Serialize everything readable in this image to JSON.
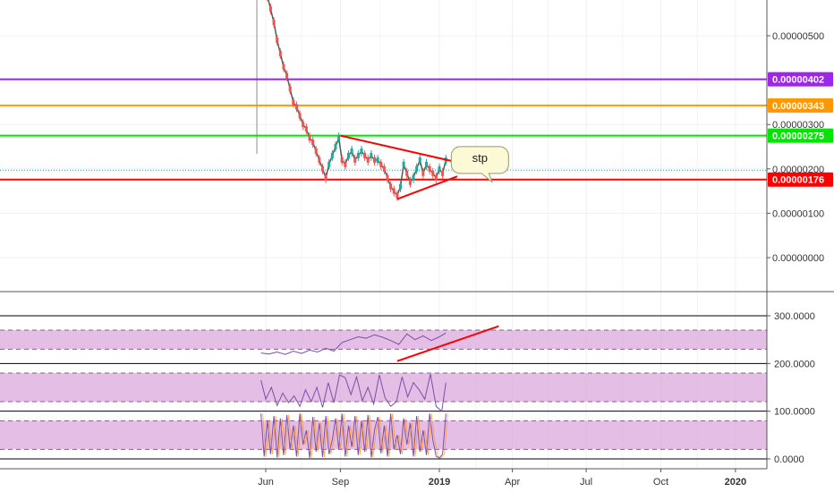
{
  "chart_data": [
    {
      "type": "line",
      "panel": "price",
      "y_ticks": [
        "0.00000500",
        "0.00000300",
        "0.00000200",
        "0.00000100",
        "0.00000000"
      ],
      "ylim": [
        -6e-07,
        6.5e-06
      ],
      "x_ticks": [
        "Jun",
        "Sep",
        "2019",
        "Apr",
        "Jul",
        "Oct",
        "2020"
      ],
      "last_price": 1.97e-06,
      "price_series": {
        "x": [
          "2018-05-26",
          "2018-05-30",
          "2018-06-03",
          "2018-06-07",
          "2018-06-11",
          "2018-06-15",
          "2018-06-19",
          "2018-06-23",
          "2018-06-27",
          "2018-07-01",
          "2018-07-05",
          "2018-07-09",
          "2018-07-13",
          "2018-07-17",
          "2018-07-21",
          "2018-07-25",
          "2018-07-29",
          "2018-08-02",
          "2018-08-06",
          "2018-08-10",
          "2018-08-14",
          "2018-08-18",
          "2018-08-22",
          "2018-08-26",
          "2018-08-30",
          "2018-09-03",
          "2018-09-07",
          "2018-09-11",
          "2018-09-15",
          "2018-09-19",
          "2018-09-23",
          "2018-09-27",
          "2018-10-01",
          "2018-10-05",
          "2018-10-09",
          "2018-10-13",
          "2018-10-17",
          "2018-10-21",
          "2018-10-25",
          "2018-10-29",
          "2018-11-02",
          "2018-11-06",
          "2018-11-10",
          "2018-11-14",
          "2018-11-18",
          "2018-11-22",
          "2018-11-26",
          "2018-11-30",
          "2018-12-04",
          "2018-12-08",
          "2018-12-12",
          "2018-12-16",
          "2018-12-20",
          "2018-12-24",
          "2018-12-28",
          "2019-01-01",
          "2019-01-05",
          "2019-01-09"
        ],
        "y": [
          6.6e-06,
          6.3e-06,
          5.9e-06,
          5.6e-06,
          5.3e-06,
          4.9e-06,
          4.6e-06,
          4.3e-06,
          4.1e-06,
          3.8e-06,
          3.5e-06,
          3.4e-06,
          3.2e-06,
          3e-06,
          2.9e-06,
          2.7e-06,
          2.6e-06,
          2.4e-06,
          2.2e-06,
          2e-06,
          1.8e-06,
          2.1e-06,
          2.3e-06,
          2.5e-06,
          2.7e-06,
          2.2e-06,
          2.1e-06,
          2.3e-06,
          2.4e-06,
          2.2e-06,
          2.3e-06,
          2.4e-06,
          2.3e-06,
          2.2e-06,
          2.3e-06,
          2.2e-06,
          2.2e-06,
          2.1e-06,
          2e-06,
          1.8e-06,
          1.6e-06,
          1.5e-06,
          1.4e-06,
          1.6e-06,
          2.1e-06,
          1.9e-06,
          1.7e-06,
          1.8e-06,
          2e-06,
          2.2e-06,
          1.9e-06,
          2.1e-06,
          2e-06,
          1.9e-06,
          1.8e-06,
          2e-06,
          1.9e-06,
          2.2e-06
        ]
      },
      "horizontal_levels": [
        {
          "label": "0.00000402",
          "value": 4.02e-06,
          "color": "#9c27e6"
        },
        {
          "label": "0.00000343",
          "value": 3.43e-06,
          "color": "#ff9800"
        },
        {
          "label": "0.00000275",
          "value": 2.75e-06,
          "color": "#00e600"
        },
        {
          "label": "0.00000176",
          "value": 1.76e-06,
          "color": "#ff0000"
        }
      ],
      "trendlines": [
        {
          "x": [
            "2018-09-01",
            "2019-01-23"
          ],
          "y": [
            2.75e-06,
            2.15e-06
          ],
          "color": "#ff0000"
        },
        {
          "x": [
            "2018-11-10",
            "2019-01-23"
          ],
          "y": [
            1.32e-06,
            1.83e-06
          ],
          "color": "#ff0000"
        }
      ],
      "annotation": {
        "text": "stp",
        "x": "2019-02-20",
        "y": 2.22e-06
      }
    },
    {
      "type": "line",
      "panel": "oscillators",
      "y_ticks": [
        "300.0000",
        "200.0000",
        "100.0000",
        "0.0000"
      ],
      "ylim": [
        0,
        300
      ],
      "bands": [
        {
          "lower": 230,
          "upper": 270,
          "color": "#d9a3d9"
        },
        {
          "lower": 120,
          "upper": 180,
          "color": "#d9a3d9"
        },
        {
          "lower": 20,
          "upper": 80,
          "color": "#d9a3d9"
        }
      ],
      "series": [
        {
          "x": [
            "2018-05-26",
            "2018-06-05",
            "2018-06-15",
            "2018-06-25",
            "2018-07-05",
            "2018-07-15",
            "2018-07-25",
            "2018-08-04",
            "2018-08-14",
            "2018-08-24",
            "2018-09-03",
            "2018-09-13",
            "2018-09-23",
            "2018-10-03",
            "2018-10-13",
            "2018-10-23",
            "2018-11-02",
            "2018-11-12",
            "2018-11-22",
            "2018-12-02",
            "2018-12-12",
            "2018-12-22",
            "2019-01-01",
            "2019-01-09"
          ],
          "y": [
            222,
            220,
            224,
            219,
            226,
            221,
            228,
            224,
            232,
            226,
            244,
            250,
            256,
            253,
            260,
            255,
            248,
            240,
            262,
            250,
            258,
            248,
            256,
            264
          ],
          "color": "#7b4fa6"
        },
        {
          "x": [
            "2018-05-26",
            "2018-06-01",
            "2018-06-08",
            "2018-06-15",
            "2018-06-22",
            "2018-06-29",
            "2018-07-06",
            "2018-07-13",
            "2018-07-20",
            "2018-07-27",
            "2018-08-03",
            "2018-08-10",
            "2018-08-17",
            "2018-08-24",
            "2018-08-31",
            "2018-09-07",
            "2018-09-14",
            "2018-09-21",
            "2018-09-28",
            "2018-10-05",
            "2018-10-12",
            "2018-10-19",
            "2018-10-26",
            "2018-11-02",
            "2018-11-09",
            "2018-11-16",
            "2018-11-23",
            "2018-11-30",
            "2018-12-07",
            "2018-12-14",
            "2018-12-21",
            "2018-12-28",
            "2019-01-04",
            "2019-01-09"
          ],
          "y": [
            165,
            125,
            150,
            112,
            138,
            118,
            132,
            110,
            145,
            120,
            150,
            108,
            160,
            118,
            176,
            170,
            135,
            172,
            122,
            150,
            115,
            176,
            128,
            110,
            120,
            172,
            130,
            160,
            145,
            125,
            178,
            110,
            100,
            160
          ],
          "color": "#7b4fa6"
        },
        {
          "x": [
            "2018-05-26",
            "2018-05-30",
            "2018-06-03",
            "2018-06-07",
            "2018-06-11",
            "2018-06-15",
            "2018-06-19",
            "2018-06-23",
            "2018-06-27",
            "2018-07-01",
            "2018-07-05",
            "2018-07-09",
            "2018-07-13",
            "2018-07-17",
            "2018-07-21",
            "2018-07-25",
            "2018-07-29",
            "2018-08-02",
            "2018-08-06",
            "2018-08-10",
            "2018-08-14",
            "2018-08-18",
            "2018-08-22",
            "2018-08-26",
            "2018-08-30",
            "2018-09-03",
            "2018-09-07",
            "2018-09-11",
            "2018-09-15",
            "2018-09-19",
            "2018-09-23",
            "2018-09-27",
            "2018-10-01",
            "2018-10-05",
            "2018-10-09",
            "2018-10-13",
            "2018-10-17",
            "2018-10-21",
            "2018-10-25",
            "2018-10-29",
            "2018-11-02",
            "2018-11-06",
            "2018-11-10",
            "2018-11-14",
            "2018-11-18",
            "2018-11-22",
            "2018-11-26",
            "2018-11-30",
            "2018-12-04",
            "2018-12-08",
            "2018-12-12",
            "2018-12-16",
            "2018-12-20",
            "2018-12-24",
            "2018-12-28",
            "2019-01-01",
            "2019-01-05",
            "2019-01-09"
          ],
          "y": [
            95,
            5,
            80,
            10,
            90,
            3,
            85,
            8,
            92,
            20,
            70,
            5,
            95,
            30,
            60,
            2,
            88,
            15,
            75,
            4,
            90,
            10,
            40,
            85,
            20,
            95,
            5,
            70,
            25,
            90,
            8,
            80,
            15,
            92,
            3,
            60,
            88,
            12,
            70,
            5,
            95,
            20,
            50,
            10,
            85,
            30,
            75,
            5,
            90,
            15,
            60,
            8,
            95,
            40,
            5,
            2,
            10,
            95
          ],
          "color": "#7b4fa6"
        }
      ]
    }
  ]
}
